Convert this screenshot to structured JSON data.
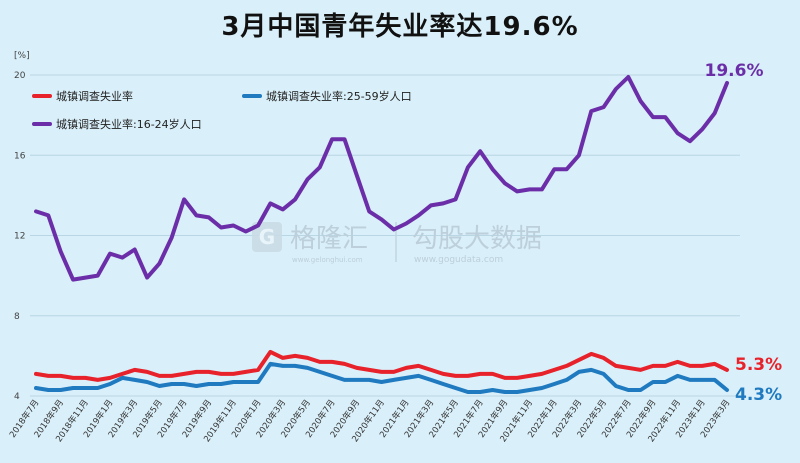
{
  "chart_data": {
    "type": "line",
    "title": "3月中国青年失业率达19.6%",
    "ylabel": "[%]",
    "ylim": [
      4,
      20
    ],
    "yticks": [
      4,
      8,
      12,
      16,
      20
    ],
    "grid": true,
    "legend_position": "top-left",
    "x": [
      "2018年7月",
      "2018年8月",
      "2018年9月",
      "2018年10月",
      "2018年11月",
      "2018年12月",
      "2019年1月",
      "2019年2月",
      "2019年3月",
      "2019年4月",
      "2019年5月",
      "2019年6月",
      "2019年7月",
      "2019年8月",
      "2019年9月",
      "2019年10月",
      "2019年11月",
      "2019年12月",
      "2020年1月",
      "2020年2月",
      "2020年3月",
      "2020年4月",
      "2020年5月",
      "2020年6月",
      "2020年7月",
      "2020年8月",
      "2020年9月",
      "2020年10月",
      "2020年11月",
      "2020年12月",
      "2021年1月",
      "2021年2月",
      "2021年3月",
      "2021年4月",
      "2021年5月",
      "2021年6月",
      "2021年7月",
      "2021年8月",
      "2021年9月",
      "2021年10月",
      "2021年11月",
      "2021年12月",
      "2022年1月",
      "2022年2月",
      "2022年3月",
      "2022年4月",
      "2022年5月",
      "2022年6月",
      "2022年7月",
      "2022年8月",
      "2022年9月",
      "2022年10月",
      "2022年11月",
      "2022年12月",
      "2023年1月",
      "2023年2月",
      "2023年3月"
    ],
    "xtick_labels": [
      "2018年7月",
      "2018年9月",
      "2018年11月",
      "2019年1月",
      "2019年3月",
      "2019年5月",
      "2019年7月",
      "2019年9月",
      "2019年11月",
      "2020年1月",
      "2020年3月",
      "2020年5月",
      "2020年7月",
      "2020年9月",
      "2020年11月",
      "2021年1月",
      "2021年3月",
      "2021年5月",
      "2021年7月",
      "2021年9月",
      "2021年11月",
      "2022年1月",
      "2022年3月",
      "2022年5月",
      "2022年7月",
      "2022年9月",
      "2022年11月",
      "2023年1月",
      "2023年3月"
    ],
    "series": [
      {
        "name": "城镇调查失业率",
        "color": "#e8222a",
        "values": [
          5.1,
          5.0,
          5.0,
          4.9,
          4.9,
          4.8,
          4.9,
          5.1,
          5.3,
          5.2,
          5.0,
          5.0,
          5.1,
          5.2,
          5.2,
          5.1,
          5.1,
          5.2,
          5.3,
          6.2,
          5.9,
          6.0,
          5.9,
          5.7,
          5.7,
          5.6,
          5.4,
          5.3,
          5.2,
          5.2,
          5.4,
          5.5,
          5.3,
          5.1,
          5.0,
          5.0,
          5.1,
          5.1,
          4.9,
          4.9,
          5.0,
          5.1,
          5.3,
          5.5,
          5.8,
          6.1,
          5.9,
          5.5,
          5.4,
          5.3,
          5.5,
          5.5,
          5.7,
          5.5,
          5.5,
          5.6,
          5.3
        ],
        "end_label": "5.3%"
      },
      {
        "name": "城镇调查失业率:25-59岁人口",
        "color": "#1f7ac0",
        "values": [
          4.4,
          4.3,
          4.3,
          4.4,
          4.4,
          4.4,
          4.6,
          4.9,
          4.8,
          4.7,
          4.5,
          4.6,
          4.6,
          4.5,
          4.6,
          4.6,
          4.7,
          4.7,
          4.7,
          5.6,
          5.5,
          5.5,
          5.4,
          5.2,
          5.0,
          4.8,
          4.8,
          4.8,
          4.7,
          4.8,
          4.9,
          5.0,
          4.8,
          4.6,
          4.4,
          4.2,
          4.2,
          4.3,
          4.2,
          4.2,
          4.3,
          4.4,
          4.6,
          4.8,
          5.2,
          5.3,
          5.1,
          4.5,
          4.3,
          4.3,
          4.7,
          4.7,
          5.0,
          4.8,
          4.8,
          4.8,
          4.3
        ],
        "end_label": "4.3%"
      },
      {
        "name": "城镇调查失业率:16-24岁人口",
        "color": "#6b2ea8",
        "values": [
          13.2,
          13.0,
          11.2,
          9.8,
          9.9,
          10.0,
          11.1,
          10.9,
          11.3,
          9.9,
          10.6,
          11.9,
          13.8,
          13.0,
          12.9,
          12.4,
          12.5,
          12.2,
          12.5,
          13.6,
          13.3,
          13.8,
          14.8,
          15.4,
          16.8,
          16.8,
          15.0,
          13.2,
          12.8,
          12.3,
          12.6,
          13.0,
          13.5,
          13.6,
          13.8,
          15.4,
          16.2,
          15.3,
          14.6,
          14.2,
          14.3,
          14.3,
          15.3,
          15.3,
          16.0,
          18.2,
          18.4,
          19.3,
          19.9,
          18.7,
          17.9,
          17.9,
          17.1,
          16.7,
          17.3,
          18.1,
          19.6
        ],
        "end_label": "19.6%"
      }
    ]
  },
  "watermark": {
    "brand_left": "格隆汇",
    "brand_left_url": "www.gelonghui.com",
    "brand_right": "勾股大数据",
    "brand_right_url": "www.gogudata.com"
  },
  "colors": {
    "background": "#d9eff9",
    "grid": "#b9d6e4"
  }
}
